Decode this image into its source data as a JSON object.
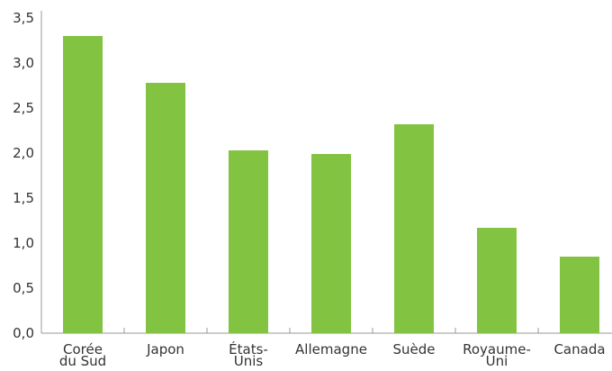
{
  "chart_data": {
    "type": "bar",
    "title": "",
    "xlabel": "",
    "ylabel": "",
    "categories": [
      [
        "Corée",
        "du Sud"
      ],
      [
        "Japon"
      ],
      [
        "États-",
        "Unis"
      ],
      [
        "Allemagne"
      ],
      [
        "Suède"
      ],
      [
        "Royaume-",
        "Uni"
      ],
      [
        "Canada"
      ]
    ],
    "values": [
      3.3,
      2.78,
      2.03,
      1.99,
      2.32,
      1.17,
      0.85
    ],
    "ylim": [
      0,
      3.5
    ],
    "yticks": [
      "0,0",
      "0,5",
      "1,0",
      "1,5",
      "2,0",
      "2,5",
      "3,0",
      "3,5"
    ],
    "grid": false,
    "bar_color": "#82c341",
    "axis_color": "#999999"
  }
}
